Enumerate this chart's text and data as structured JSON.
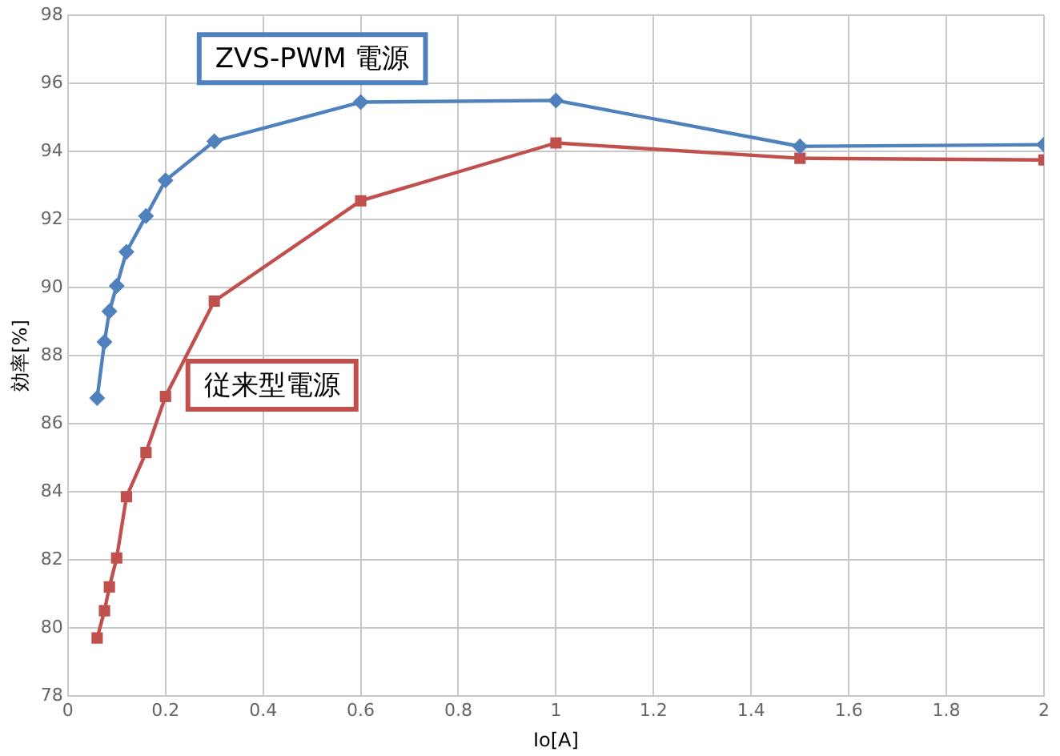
{
  "chart_data": {
    "type": "line",
    "xlabel": "Io[A]",
    "ylabel": "効率[%]",
    "x": [
      0.06,
      0.075,
      0.085,
      0.1,
      0.12,
      0.16,
      0.2,
      0.3,
      0.6,
      1.0,
      1.5,
      2.0
    ],
    "series": [
      {
        "name": "ZVS-PWM 電源",
        "color": "#4f81bd",
        "marker": "diamond",
        "values": [
          86.75,
          88.4,
          89.3,
          90.05,
          91.05,
          92.1,
          93.15,
          94.3,
          95.45,
          95.5,
          94.15,
          94.2
        ]
      },
      {
        "name": "従来型電源",
        "color": "#c0504d",
        "marker": "square",
        "values": [
          79.7,
          80.5,
          81.2,
          82.05,
          83.85,
          85.15,
          86.8,
          89.6,
          92.55,
          94.25,
          93.8,
          93.75
        ]
      }
    ],
    "xlim": [
      0,
      2
    ],
    "xticks": [
      0,
      0.2,
      0.4,
      0.6,
      0.8,
      1,
      1.2,
      1.4,
      1.6,
      1.8,
      2
    ],
    "ylim": [
      78,
      98
    ],
    "yticks": [
      78,
      80,
      82,
      84,
      86,
      88,
      90,
      92,
      94,
      96,
      98
    ],
    "grid": true,
    "legend": false,
    "line_style": "solid"
  }
}
